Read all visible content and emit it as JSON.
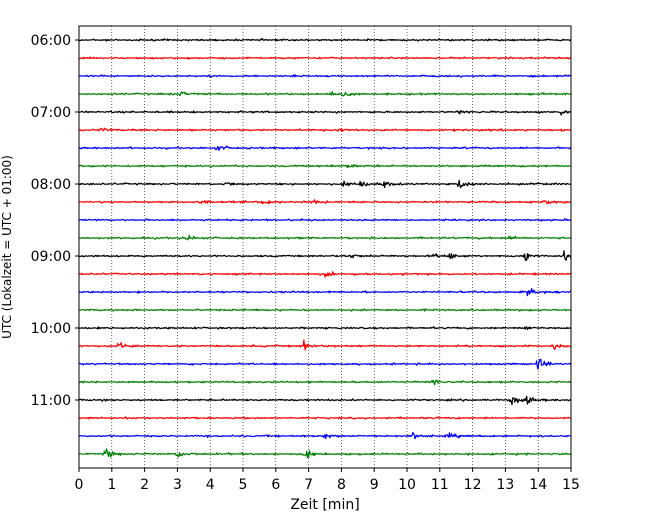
{
  "chart_data": {
    "type": "line",
    "title": "",
    "xlabel": "Zeit  [min]",
    "ylabel": "UTC (Lokalzeit = UTC + 01:00)",
    "xlim": [
      0,
      15
    ],
    "x_ticks": [
      "0",
      "1",
      "2",
      "3",
      "4",
      "5",
      "6",
      "7",
      "8",
      "9",
      "10",
      "11",
      "12",
      "13",
      "14",
      "15"
    ],
    "y_ticks": [
      {
        "value": 0,
        "label": "06:00"
      },
      {
        "value": 4,
        "label": "07:00"
      },
      {
        "value": 8,
        "label": "08:00"
      },
      {
        "value": 12,
        "label": "09:00"
      },
      {
        "value": 16,
        "label": "10:00"
      },
      {
        "value": 20,
        "label": "11:00"
      }
    ],
    "grid": "vertical-dotted",
    "legend": "none",
    "traces_per_hour": 4,
    "trace_minutes": 15,
    "color_cycle": [
      "#000000",
      "#ff0000",
      "#0000ff",
      "#008000"
    ],
    "traces": [
      {
        "start": "06:00",
        "events": []
      },
      {
        "start": "06:15",
        "events": []
      },
      {
        "start": "06:30",
        "events": []
      },
      {
        "start": "06:45",
        "events": [
          {
            "t": 3.1,
            "amp": 0.35
          },
          {
            "t": 7.7,
            "amp": 0.55
          },
          {
            "t": 8.1,
            "amp": 0.4
          }
        ]
      },
      {
        "start": "07:00",
        "events": [
          {
            "t": 11.6,
            "amp": 0.3
          },
          {
            "t": 14.7,
            "amp": 0.4
          }
        ]
      },
      {
        "start": "07:15",
        "events": [
          {
            "t": 0.7,
            "amp": 0.45
          },
          {
            "t": 7.9,
            "amp": 0.3
          }
        ]
      },
      {
        "start": "07:30",
        "events": [
          {
            "t": 4.2,
            "amp": 0.55
          }
        ]
      },
      {
        "start": "07:45",
        "events": [
          {
            "t": 7.3,
            "amp": 0.25
          },
          {
            "t": 8.2,
            "amp": 0.3
          }
        ]
      },
      {
        "start": "08:00",
        "events": [
          {
            "t": 4.5,
            "amp": 0.3
          },
          {
            "t": 8.1,
            "amp": 0.45
          },
          {
            "t": 8.6,
            "amp": 0.5
          },
          {
            "t": 9.3,
            "amp": 0.55
          },
          {
            "t": 11.6,
            "amp": 0.9
          },
          {
            "t": 13.9,
            "amp": 0.35
          }
        ]
      },
      {
        "start": "08:15",
        "events": [
          {
            "t": 3.7,
            "amp": 0.3
          },
          {
            "t": 5.6,
            "amp": 0.5
          },
          {
            "t": 7.1,
            "amp": 0.3
          },
          {
            "t": 14.2,
            "amp": 0.45
          }
        ]
      },
      {
        "start": "08:30",
        "events": []
      },
      {
        "start": "08:45",
        "events": [
          {
            "t": 3.3,
            "amp": 0.4
          },
          {
            "t": 13.1,
            "amp": 0.25
          }
        ]
      },
      {
        "start": "09:00",
        "events": [
          {
            "t": 8.3,
            "amp": 0.4
          },
          {
            "t": 10.8,
            "amp": 0.4
          },
          {
            "t": 11.3,
            "amp": 0.45
          },
          {
            "t": 13.6,
            "amp": 1.0
          },
          {
            "t": 14.8,
            "amp": 0.8
          }
        ]
      },
      {
        "start": "09:15",
        "events": [
          {
            "t": 7.5,
            "amp": 0.4
          }
        ]
      },
      {
        "start": "09:30",
        "events": [
          {
            "t": 13.7,
            "amp": 0.8
          }
        ]
      },
      {
        "start": "09:45",
        "events": []
      },
      {
        "start": "10:00",
        "events": [
          {
            "t": 13.6,
            "amp": 0.3
          }
        ]
      },
      {
        "start": "10:15",
        "events": [
          {
            "t": 1.2,
            "amp": 0.7
          },
          {
            "t": 6.8,
            "amp": 0.9
          },
          {
            "t": 14.5,
            "amp": 0.55
          }
        ]
      },
      {
        "start": "10:30",
        "events": [
          {
            "t": 14.0,
            "amp": 1.1
          }
        ]
      },
      {
        "start": "10:45",
        "events": [
          {
            "t": 10.8,
            "amp": 0.6
          }
        ]
      },
      {
        "start": "11:00",
        "events": [
          {
            "t": 13.2,
            "amp": 0.9
          },
          {
            "t": 13.6,
            "amp": 0.7
          }
        ]
      },
      {
        "start": "11:15",
        "events": []
      },
      {
        "start": "11:30",
        "events": [
          {
            "t": 7.5,
            "amp": 0.45
          },
          {
            "t": 10.2,
            "amp": 0.55
          },
          {
            "t": 11.3,
            "amp": 0.4
          }
        ]
      },
      {
        "start": "11:45",
        "events": [
          {
            "t": 0.8,
            "amp": 0.9
          },
          {
            "t": 3.0,
            "amp": 0.6
          },
          {
            "t": 6.9,
            "amp": 0.75
          }
        ]
      }
    ]
  }
}
